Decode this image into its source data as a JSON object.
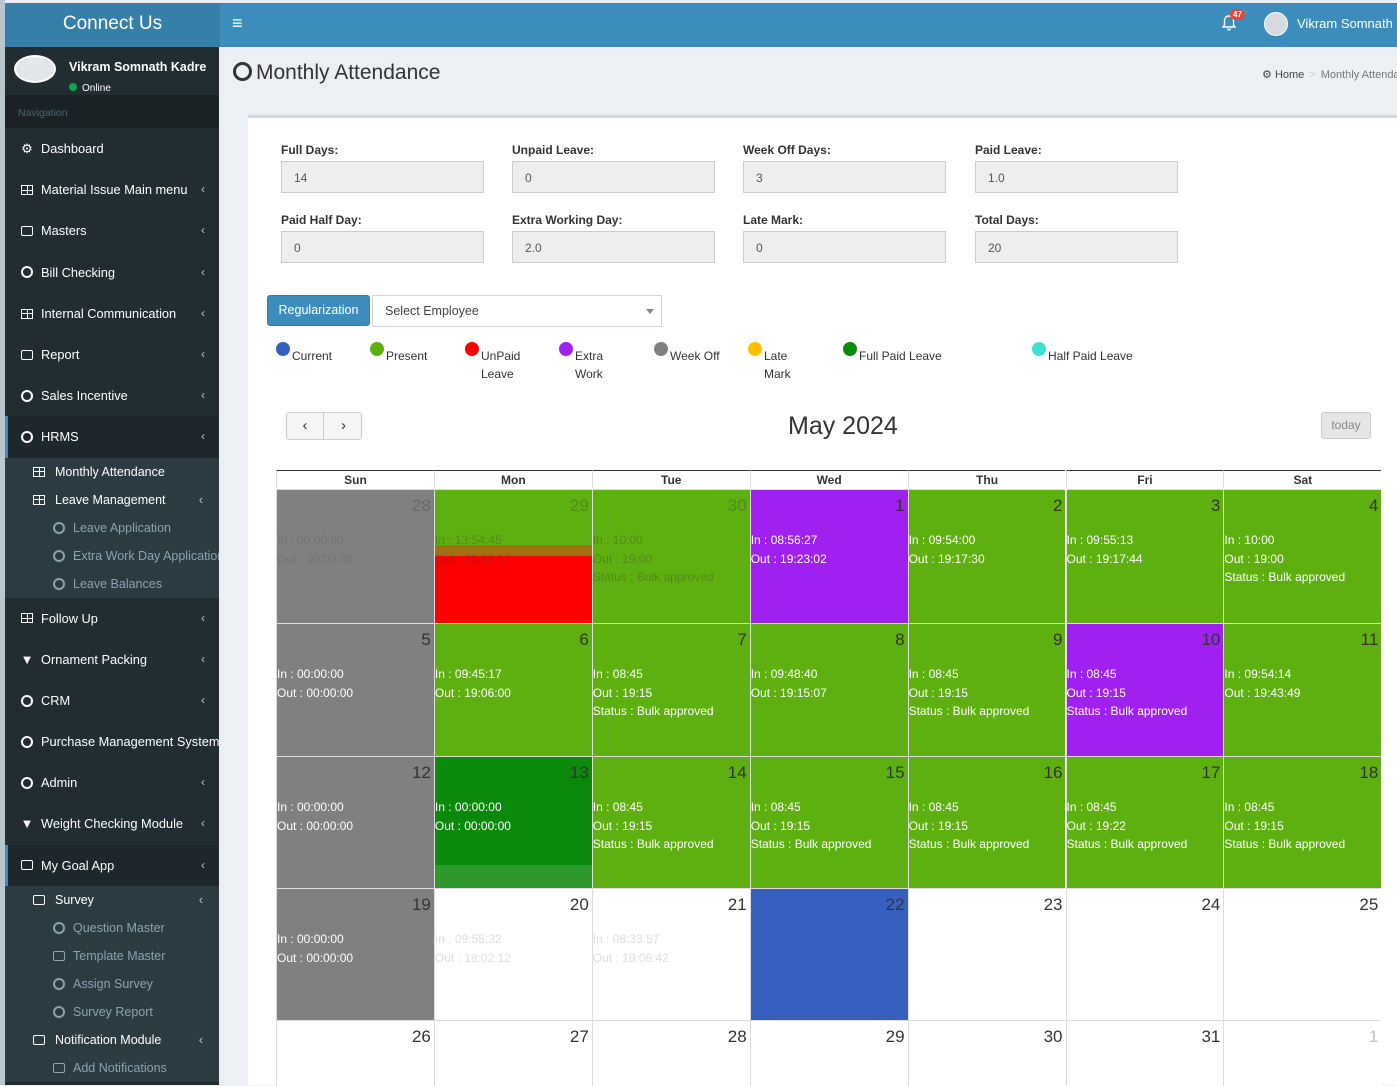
{
  "app": {
    "title": "Connect Us",
    "user": "Vikram Somnath Kadre",
    "user_short": "Vikram Somnath K",
    "status": "Online",
    "notifications": "47"
  },
  "sidebar": {
    "nav_header": "Navigation",
    "items": [
      {
        "label": "Dashboard",
        "icon": "dashboard-icon"
      },
      {
        "label": "Material Issue Main menu",
        "icon": "table-icon"
      },
      {
        "label": "Masters",
        "icon": "money-icon"
      },
      {
        "label": "Bill Checking",
        "icon": "circle-icon"
      },
      {
        "label": "Internal Communication",
        "icon": "table-icon"
      },
      {
        "label": "Report",
        "icon": "money-icon"
      },
      {
        "label": "Sales Incentive",
        "icon": "circle-icon"
      },
      {
        "label": "HRMS",
        "icon": "circle-icon"
      },
      {
        "label": "Follow Up",
        "icon": "table-icon"
      },
      {
        "label": "Ornament Packing",
        "icon": "filter-icon"
      },
      {
        "label": "CRM",
        "icon": "circle-icon"
      },
      {
        "label": "Purchase Management System",
        "icon": "circle-icon"
      },
      {
        "label": "Admin",
        "icon": "circle-icon"
      },
      {
        "label": "Weight Checking Module",
        "icon": "filter-icon"
      },
      {
        "label": "My Goal App",
        "icon": "money-icon"
      }
    ],
    "hrms_sub": {
      "monthly": "Monthly Attendance",
      "leave_mgmt": "Leave Management",
      "leave_app": "Leave Application",
      "extra_work": "Extra Work Day Application",
      "leave_bal": "Leave Balances"
    },
    "goal_sub": {
      "survey": "Survey",
      "question": "Question Master",
      "template": "Template Master",
      "assign": "Assign Survey",
      "report": "Survey Report",
      "notification": "Notification Module",
      "add_notif": "Add Notifications"
    }
  },
  "page": {
    "title": "Monthly Attendance",
    "breadcrumb_home": "Home",
    "breadcrumb_current": "Monthly Attendance"
  },
  "stats": [
    {
      "label": "Full Days:",
      "value": "14"
    },
    {
      "label": "Unpaid Leave:",
      "value": "0"
    },
    {
      "label": "Week Off Days:",
      "value": "3"
    },
    {
      "label": "Paid Leave:",
      "value": "1.0"
    },
    {
      "label": "Paid Half Day:",
      "value": "0"
    },
    {
      "label": "Extra Working Day:",
      "value": "2.0"
    },
    {
      "label": "Late Mark:",
      "value": "0"
    },
    {
      "label": "Total Days:",
      "value": "20"
    }
  ],
  "controls": {
    "regularization": "Regularization",
    "select_employee": "Select Employee"
  },
  "legend": [
    {
      "line1": "Current",
      "line2": "",
      "color": "#365fbf"
    },
    {
      "line1": "Present",
      "line2": "",
      "color": "#5eb010"
    },
    {
      "line1": "UnPaid",
      "line2": "Leave",
      "color": "#ff0000"
    },
    {
      "line1": "Extra",
      "line2": "Work",
      "color": "#a020f0"
    },
    {
      "line1": "Week Off",
      "line2": "",
      "color": "#808080"
    },
    {
      "line1": "Late",
      "line2": "Mark",
      "color": "#ffc000"
    },
    {
      "line1": "Full Paid Leave",
      "line2": "",
      "color": "#0a8a0a"
    },
    {
      "line1": "Half Paid Leave",
      "line2": "",
      "color": "#40e0d0"
    }
  ],
  "calendar": {
    "month_title": "May 2024",
    "today_label": "today",
    "prev": "‹",
    "next": "›",
    "days": [
      "Sun",
      "Mon",
      "Tue",
      "Wed",
      "Thu",
      "Fri",
      "Sat"
    ],
    "weeks": [
      [
        {
          "d": "28",
          "bg": "#808080",
          "faded": true,
          "lines": [
            "In : 00:00:00",
            "Out : 00:00:00"
          ]
        },
        {
          "d": "29",
          "bg": "#5eb010",
          "faded": true,
          "split": true,
          "lines": [
            "In : 13:54:45",
            "Out : 15:59:17"
          ]
        },
        {
          "d": "30",
          "bg": "#5eb010",
          "faded": true,
          "lines": [
            "In : 10:00",
            "Out : 19:00",
            "Status : Bulk approved"
          ]
        },
        {
          "d": "1",
          "bg": "#a020f0",
          "lines": [
            "In : 08:56:27",
            "Out : 19:23:02"
          ]
        },
        {
          "d": "2",
          "bg": "#5eb010",
          "lines": [
            "In : 09:54:00",
            "Out : 19:17:30"
          ]
        },
        {
          "d": "3",
          "bg": "#5eb010",
          "lines": [
            "In : 09:55:13",
            "Out : 19:17:44"
          ]
        },
        {
          "d": "4",
          "bg": "#5eb010",
          "lines": [
            "In : 10:00",
            "Out : 19:00",
            "Status : Bulk approved"
          ]
        }
      ],
      [
        {
          "d": "5",
          "bg": "#808080",
          "lines": [
            "In : 00:00:00",
            "Out : 00:00:00"
          ]
        },
        {
          "d": "6",
          "bg": "#5eb010",
          "lines": [
            "In : 09:45:17",
            "Out : 19:06:00"
          ]
        },
        {
          "d": "7",
          "bg": "#5eb010",
          "lines": [
            "In : 08:45",
            "Out : 19:15",
            "Status : Bulk approved"
          ]
        },
        {
          "d": "8",
          "bg": "#5eb010",
          "lines": [
            "In : 09:48:40",
            "Out : 19:15:07"
          ]
        },
        {
          "d": "9",
          "bg": "#5eb010",
          "lines": [
            "In : 08:45",
            "Out : 19:15",
            "Status : Bulk approved"
          ]
        },
        {
          "d": "10",
          "bg": "#a020f0",
          "lines": [
            "In : 08:45",
            "Out : 19:15",
            "Status : Bulk approved"
          ]
        },
        {
          "d": "11",
          "bg": "#5eb010",
          "lines": [
            "In : 09:54:14",
            "Out : 19:43:49"
          ]
        }
      ],
      [
        {
          "d": "12",
          "bg": "#808080",
          "lines": [
            "In : 00:00:00",
            "Out : 00:00:00"
          ]
        },
        {
          "d": "13",
          "bg": "#0a8a0a",
          "bottom": "#2e9a2e",
          "lines": [
            "In : 00:00:00",
            "Out : 00:00:00"
          ]
        },
        {
          "d": "14",
          "bg": "#5eb010",
          "lines": [
            "In : 08:45",
            "Out : 19:15",
            "Status : Bulk approved"
          ]
        },
        {
          "d": "15",
          "bg": "#5eb010",
          "lines": [
            "In : 08:45",
            "Out : 19:15",
            "Status : Bulk approved"
          ]
        },
        {
          "d": "16",
          "bg": "#5eb010",
          "lines": [
            "In : 08:45",
            "Out : 19:15",
            "Status : Bulk approved"
          ]
        },
        {
          "d": "17",
          "bg": "#5eb010",
          "lines": [
            "In : 08:45",
            "Out : 19:22",
            "Status : Bulk approved"
          ]
        },
        {
          "d": "18",
          "bg": "#5eb010",
          "lines": [
            "In : 08:45",
            "Out : 19:15",
            "Status : Bulk approved"
          ]
        }
      ],
      [
        {
          "d": "19",
          "bg": "#808080",
          "lines": [
            "In : 00:00:00",
            "Out : 00:00:00"
          ]
        },
        {
          "d": "20",
          "bg": "#ffffff",
          "ghost": true,
          "lines": [
            "In : 09:55:32",
            "Out : 18:02:12"
          ]
        },
        {
          "d": "21",
          "bg": "#ffffff",
          "ghost": true,
          "lines": [
            "In : 08:33:57",
            "Out : 19:06:42"
          ]
        },
        {
          "d": "22",
          "bg": "#365fbf",
          "lines": []
        },
        {
          "d": "23",
          "bg": "#ffffff",
          "lines": []
        },
        {
          "d": "24",
          "bg": "#ffffff",
          "lines": []
        },
        {
          "d": "25",
          "bg": "#ffffff",
          "lines": []
        }
      ],
      [
        {
          "d": "26",
          "bg": "#ffffff",
          "lines": []
        },
        {
          "d": "27",
          "bg": "#ffffff",
          "lines": []
        },
        {
          "d": "28",
          "bg": "#ffffff",
          "lines": []
        },
        {
          "d": "29",
          "bg": "#ffffff",
          "lines": []
        },
        {
          "d": "30",
          "bg": "#ffffff",
          "lines": []
        },
        {
          "d": "31",
          "bg": "#ffffff",
          "lines": []
        },
        {
          "d": "1",
          "bg": "#ffffff",
          "faded": true,
          "lines": []
        }
      ]
    ]
  }
}
